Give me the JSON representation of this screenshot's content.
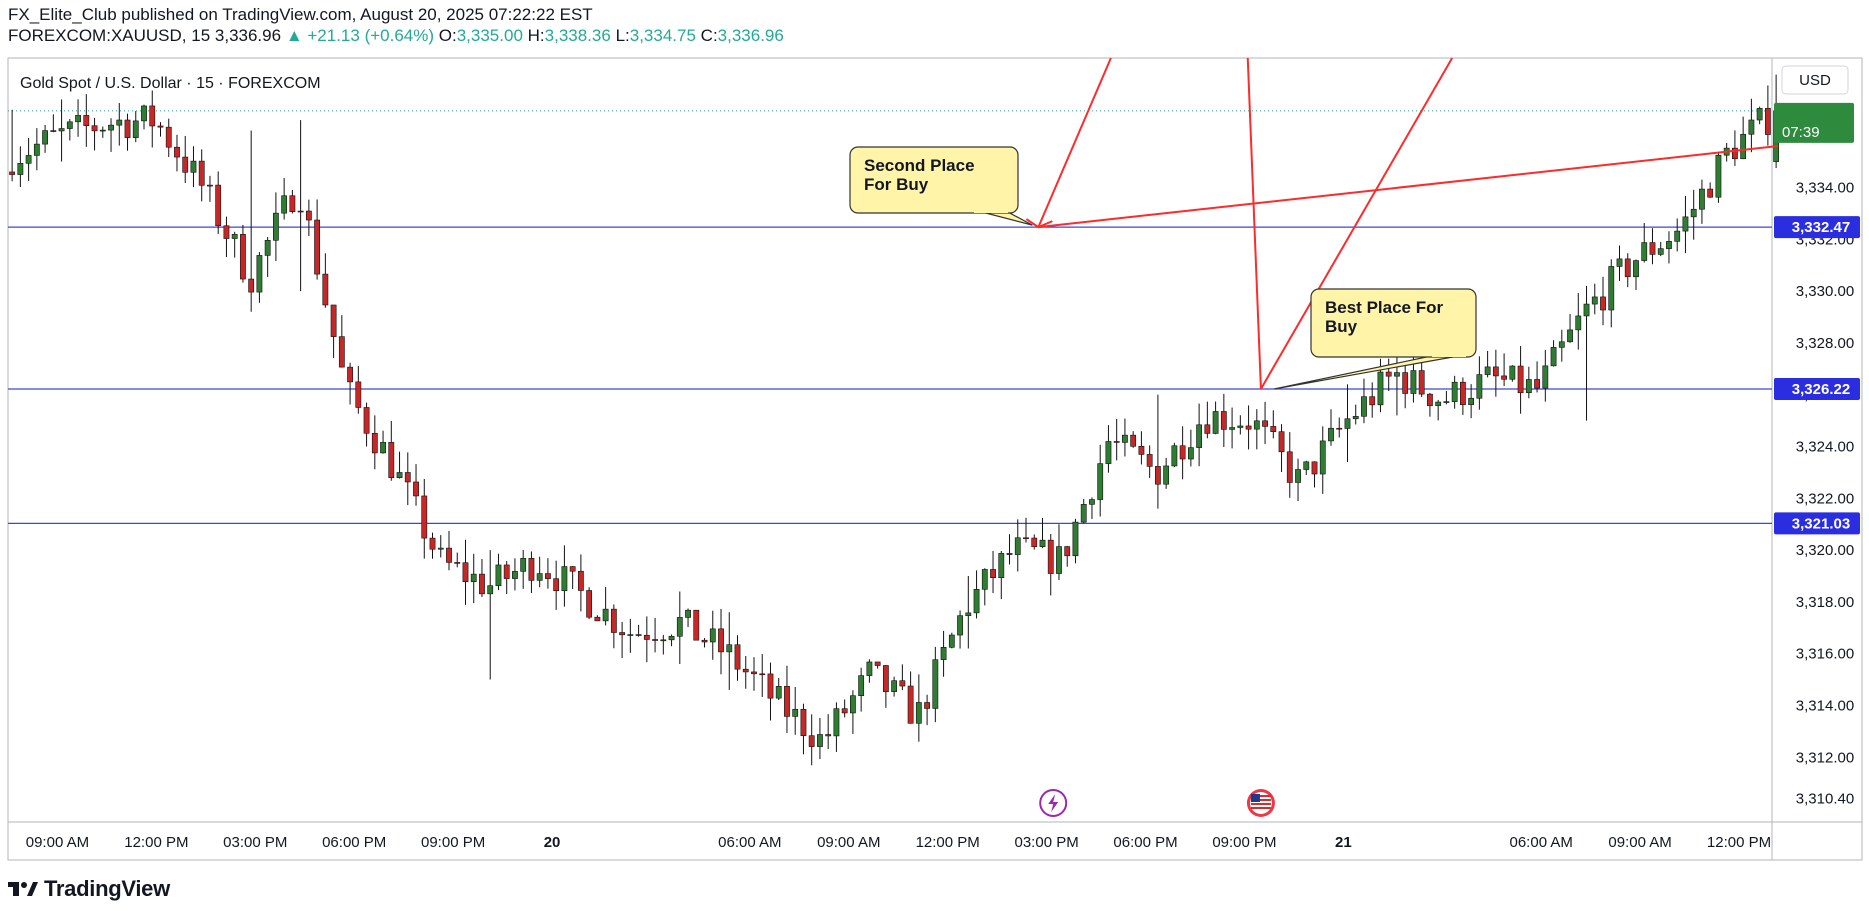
{
  "header": {
    "published": "FX_Elite_Club published on TradingView.com, August 20, 2025 07:22:22 EST",
    "symbol": "FOREXCOM:XAUUSD, 15",
    "last": "3,336.96",
    "change": "+21.13 (+0.64%)",
    "o_label": "O:",
    "o": "3,335.00",
    "h_label": "H:",
    "h": "3,338.36",
    "l_label": "L:",
    "l": "3,334.75",
    "c_label": "C:",
    "c": "3,336.96"
  },
  "watermark": "Gold Spot / U.S. Dollar · 15 · FOREXCOM",
  "currency": "USD",
  "countdown": "07:39",
  "brand": "TradingView",
  "colors": {
    "up": "#22ab94",
    "down": "#f23645",
    "candle_up": "#2e7d32",
    "candle_down": "#c62828",
    "level_line": "#3f48cc",
    "label_bg": "#2a2ee0",
    "arrow": "#ff2a2a",
    "callout_bg": "#fff4a8"
  },
  "annotations": [
    {
      "text": "Second Place\nFor Buy",
      "price": 3332.47,
      "time": "14:45"
    },
    {
      "text": "Best Place For\nBuy",
      "price": 3326.22,
      "time": "21:30"
    }
  ],
  "event_icons": [
    "lightning-icon",
    "us-flag-icon"
  ],
  "chart_data": {
    "type": "candlestick",
    "title": "Gold Spot / U.S. Dollar · 15 · FOREXCOM",
    "ylim": [
      3309.5,
      3339.0
    ],
    "ylabel": "USD",
    "y_ticks": [
      "3,334.00",
      "3,332.00",
      "3,330.00",
      "3,328.00",
      "3,326.00",
      "3,324.00",
      "3,322.00",
      "3,320.00",
      "3,318.00",
      "3,316.00",
      "3,314.00",
      "3,312.00",
      "3,310.40"
    ],
    "x_ticks": [
      "09:00 AM",
      "12:00 PM",
      "03:00 PM",
      "06:00 PM",
      "09:00 PM",
      "20",
      "06:00 AM",
      "09:00 AM",
      "12:00 PM",
      "03:00 PM",
      "06:00 PM",
      "09:00 PM",
      "21",
      "06:00 AM",
      "09:00 AM",
      "12:00 PM"
    ],
    "horizontal_levels": [
      {
        "value": 3332.47,
        "label": "3,332.47"
      },
      {
        "value": 3326.22,
        "label": "3,326.22"
      },
      {
        "value": 3321.03,
        "label": "3,321.03"
      }
    ],
    "current_price": 3336.96,
    "grid": false,
    "anchors": [
      {
        "c": 3335.2,
        "lo": 3334.3,
        "hi": 3337.0
      },
      {
        "c": 3336.0,
        "lo": 3335.0,
        "hi": 3337.4
      },
      {
        "c": 3336.5,
        "lo": 3335.6,
        "hi": 3337.6
      },
      {
        "c": 3336.6,
        "lo": 3335.4,
        "hi": 3337.6
      },
      {
        "c": 3334.0,
        "lo": 3325.8,
        "hi": 3336.4
      },
      {
        "c": 3330.5,
        "lo": 3329.2,
        "hi": 3336.2
      },
      {
        "c": 3334.2,
        "lo": 3330.0,
        "hi": 3336.6
      },
      {
        "c": 3326.2,
        "lo": 3321.0,
        "hi": 3334.8
      },
      {
        "c": 3323.2,
        "lo": 3320.8,
        "hi": 3326.6
      },
      {
        "c": 3319.5,
        "lo": 3318.0,
        "hi": 3322.0
      },
      {
        "c": 3318.6,
        "lo": 3315.0,
        "hi": 3320.0
      },
      {
        "c": 3319.6,
        "lo": 3317.0,
        "hi": 3320.6
      },
      {
        "c": 3318.2,
        "lo": 3316.5,
        "hi": 3320.4
      },
      {
        "c": 3316.8,
        "lo": 3315.2,
        "hi": 3318.4
      },
      {
        "c": 3317.2,
        "lo": 3315.6,
        "hi": 3318.4
      },
      {
        "c": 3316.0,
        "lo": 3314.6,
        "hi": 3317.6
      },
      {
        "c": 3314.2,
        "lo": 3312.6,
        "hi": 3316.0
      },
      {
        "c": 3312.6,
        "lo": 3311.6,
        "hi": 3317.6
      },
      {
        "c": 3315.2,
        "lo": 3313.6,
        "hi": 3316.2
      },
      {
        "c": 3313.6,
        "lo": 3312.6,
        "hi": 3315.2
      },
      {
        "c": 3317.8,
        "lo": 3316.2,
        "hi": 3319.0
      },
      {
        "c": 3320.0,
        "lo": 3318.0,
        "hi": 3320.8
      },
      {
        "c": 3319.6,
        "lo": 3318.4,
        "hi": 3321.2
      },
      {
        "c": 3324.2,
        "lo": 3319.6,
        "hi": 3325.4
      },
      {
        "c": 3323.0,
        "lo": 3321.6,
        "hi": 3326.0
      },
      {
        "c": 3325.2,
        "lo": 3322.6,
        "hi": 3327.8
      },
      {
        "c": 3325.0,
        "lo": 3323.2,
        "hi": 3326.4
      },
      {
        "c": 3322.6,
        "lo": 3321.0,
        "hi": 3324.8
      },
      {
        "c": 3325.0,
        "lo": 3323.4,
        "hi": 3326.4
      },
      {
        "c": 3326.8,
        "lo": 3325.2,
        "hi": 3327.6
      },
      {
        "c": 3325.8,
        "lo": 3324.6,
        "hi": 3327.0
      },
      {
        "c": 3326.6,
        "lo": 3323.8,
        "hi": 3327.6
      },
      {
        "c": 3326.2,
        "lo": 3325.4,
        "hi": 3327.8
      },
      {
        "c": 3329.2,
        "lo": 3325.0,
        "hi": 3330.2
      },
      {
        "c": 3331.2,
        "lo": 3329.0,
        "hi": 3332.0
      },
      {
        "c": 3332.4,
        "lo": 3332.0,
        "hi": 3333.4
      },
      {
        "c": 3335.4,
        "lo": 3333.8,
        "hi": 3338.36
      },
      {
        "c": 3336.96,
        "lo": 3334.75,
        "hi": 3338.36
      }
    ]
  }
}
